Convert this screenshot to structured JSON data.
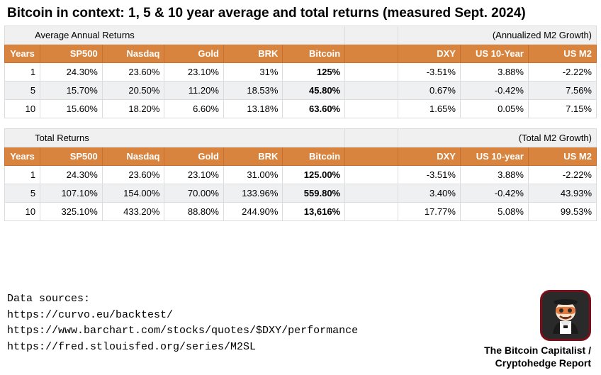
{
  "title": "Bitcoin in context: 1, 5 & 10 year average and total returns (measured Sept. 2024)",
  "colors": {
    "header_bg": "#d8843f",
    "header_fg": "#ffffff",
    "section_bg": "#f0f0f0",
    "row_alt_bg": "#eef0f1",
    "row_bg": "#ffffff",
    "border": "#dcdcdc",
    "logo_border": "#7a0e1a",
    "logo_bg": "#2a2a2a"
  },
  "layout": {
    "col_widths_pct": [
      6,
      10.5,
      10.5,
      10,
      10,
      10.5,
      9,
      10.5,
      11.5,
      11.5
    ],
    "bold_column_index": 5
  },
  "tables": [
    {
      "section_label": "Average Annual Returns",
      "section_right": "(Annualized M2 Growth)",
      "columns": [
        "Years",
        "SP500",
        "Nasdaq",
        "Gold",
        "BRK",
        "Bitcoin",
        "",
        "DXY",
        "US 10-Year",
        "US M2"
      ],
      "rows": [
        [
          "1",
          "24.30%",
          "23.60%",
          "23.10%",
          "31%",
          "125%",
          "",
          "-3.51%",
          "3.88%",
          "-2.22%"
        ],
        [
          "5",
          "15.70%",
          "20.50%",
          "11.20%",
          "18.53%",
          "45.80%",
          "",
          "0.67%",
          "-0.42%",
          "7.56%"
        ],
        [
          "10",
          "15.60%",
          "18.20%",
          "6.60%",
          "13.18%",
          "63.60%",
          "",
          "1.65%",
          "0.05%",
          "7.15%"
        ]
      ]
    },
    {
      "section_label": "Total Returns",
      "section_right": "(Total M2 Growth)",
      "columns": [
        "Years",
        "SP500",
        "Nasdaq",
        "Gold",
        "BRK",
        "Bitcoin",
        "",
        "DXY",
        "US 10-year",
        "US M2"
      ],
      "rows": [
        [
          "1",
          "24.30%",
          "23.60%",
          "23.10%",
          "31.00%",
          "125.00%",
          "",
          "-3.51%",
          "3.88%",
          "-2.22%"
        ],
        [
          "5",
          "107.10%",
          "154.00%",
          "70.00%",
          "133.96%",
          "559.80%",
          "",
          "3.40%",
          "-0.42%",
          "43.93%"
        ],
        [
          "10",
          "325.10%",
          "433.20%",
          "88.80%",
          "244.90%",
          "13,616%",
          "",
          "17.77%",
          "5.08%",
          "99.53%"
        ]
      ]
    }
  ],
  "footer": {
    "sources_heading": "Data sources:",
    "sources": [
      "https://curvo.eu/backtest/",
      "https://www.barchart.com/stocks/quotes/$DXY/performance",
      "https://fred.stlouisfed.org/series/M2SL"
    ],
    "credit_line1": "The Bitcoin Capitalist /",
    "credit_line2": "Cryptohedge Report"
  }
}
